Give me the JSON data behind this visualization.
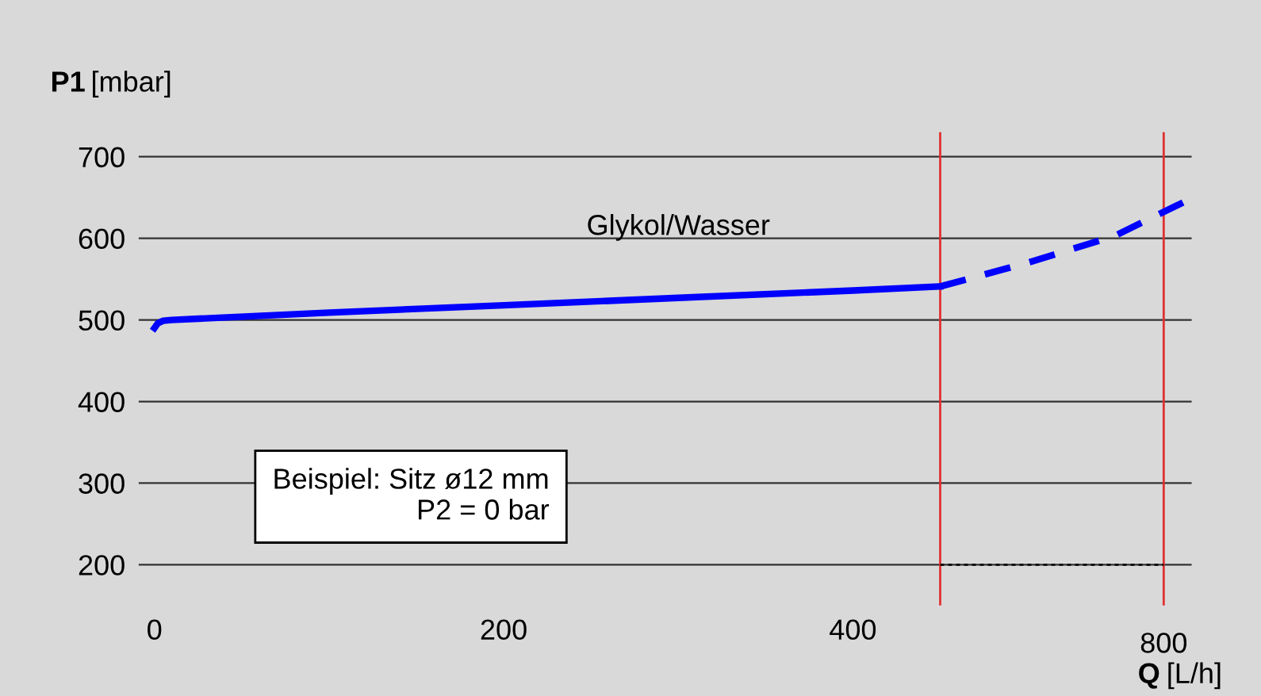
{
  "chart_data": {
    "type": "line",
    "xlabel": "Q [L/h]",
    "ylabel": "P1 [mbar]",
    "xlim": [
      -9,
      594
    ],
    "ylim": [
      150,
      730
    ],
    "xticks": [
      0,
      200,
      400
    ],
    "yticks": [
      200,
      300,
      400,
      500,
      600,
      700
    ],
    "grid": "y",
    "legend": false,
    "series": [
      {
        "name": "Glykol/Wasser",
        "color": "#0000ff",
        "line_style": "solid",
        "x": [
          0,
          2,
          5,
          10,
          100,
          200,
          300,
          400,
          450
        ],
        "values": [
          490,
          496,
          499,
          500,
          509,
          518,
          527,
          536,
          541
        ]
      },
      {
        "color": "#0000ff",
        "line_style": "dashed",
        "x": [
          450,
          500,
          550,
          591
        ],
        "values": [
          541,
          570,
          603,
          646
        ]
      },
      {
        "color": "#000000",
        "line_style": "dotted",
        "x": [
          450,
          578
        ],
        "values": [
          200,
          200
        ]
      }
    ],
    "ref_lines": [
      {
        "axis": "x",
        "value": 450,
        "color": "#e03030"
      },
      {
        "axis": "x",
        "value": 578,
        "color": "#e03030"
      }
    ],
    "annotations": [
      "Beispiel: Sitz ø12 mm\nP2 = 0 bar",
      "800"
    ]
  }
}
